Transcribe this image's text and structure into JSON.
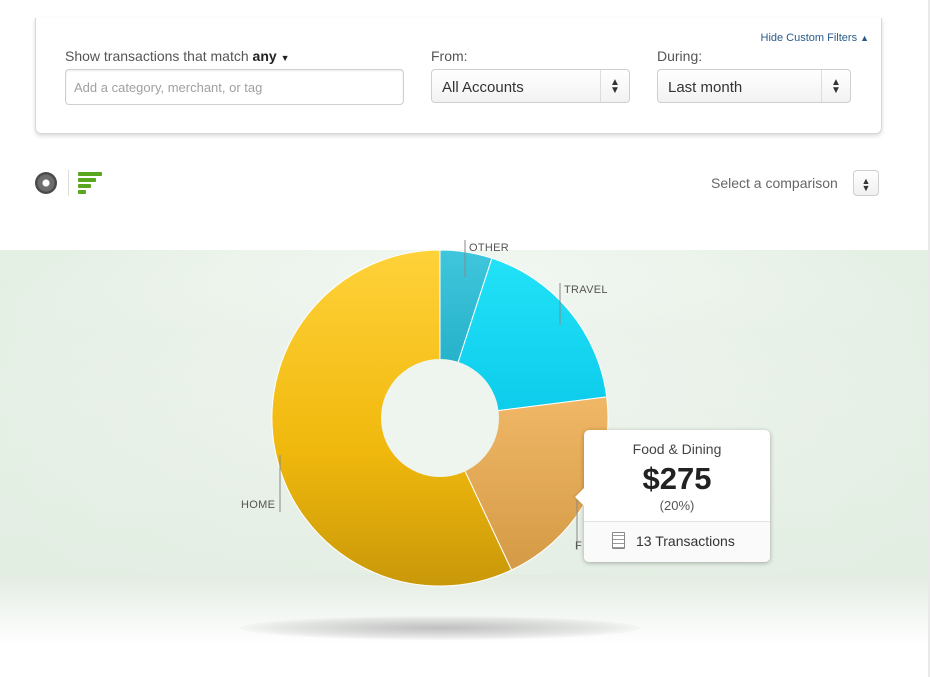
{
  "filters": {
    "hide_link": "Hide Custom Filters",
    "match_prefix": "Show transactions that match",
    "match_value": "any",
    "search_placeholder": "Add a category, merchant, or tag",
    "from_label": "From:",
    "from_value": "All Accounts",
    "during_label": "During:",
    "during_value": "Last month"
  },
  "toolbar": {
    "view_icons": [
      "donut-chart-icon",
      "bar-chart-icon"
    ],
    "comparison_label": "Select a comparison"
  },
  "colors": {
    "home": "#f3bd12",
    "other": "#27b6d0",
    "travel": "#17d8f4",
    "food": "#e6ab57",
    "accent_green": "#5aa61f"
  },
  "chart_data": {
    "type": "pie",
    "style": "donut",
    "labels": [
      "HOME",
      "OTHER",
      "TRAVEL",
      "F"
    ],
    "slices": [
      {
        "name": "HOME",
        "percent": 57
      },
      {
        "name": "OTHER",
        "percent": 5
      },
      {
        "name": "TRAVEL",
        "percent": 18
      },
      {
        "name": "Food & Dining",
        "percent": 20
      }
    ]
  },
  "tooltip": {
    "category": "Food & Dining",
    "amount": "$275",
    "percent": "(20%)",
    "transactions": "13 Transactions"
  }
}
